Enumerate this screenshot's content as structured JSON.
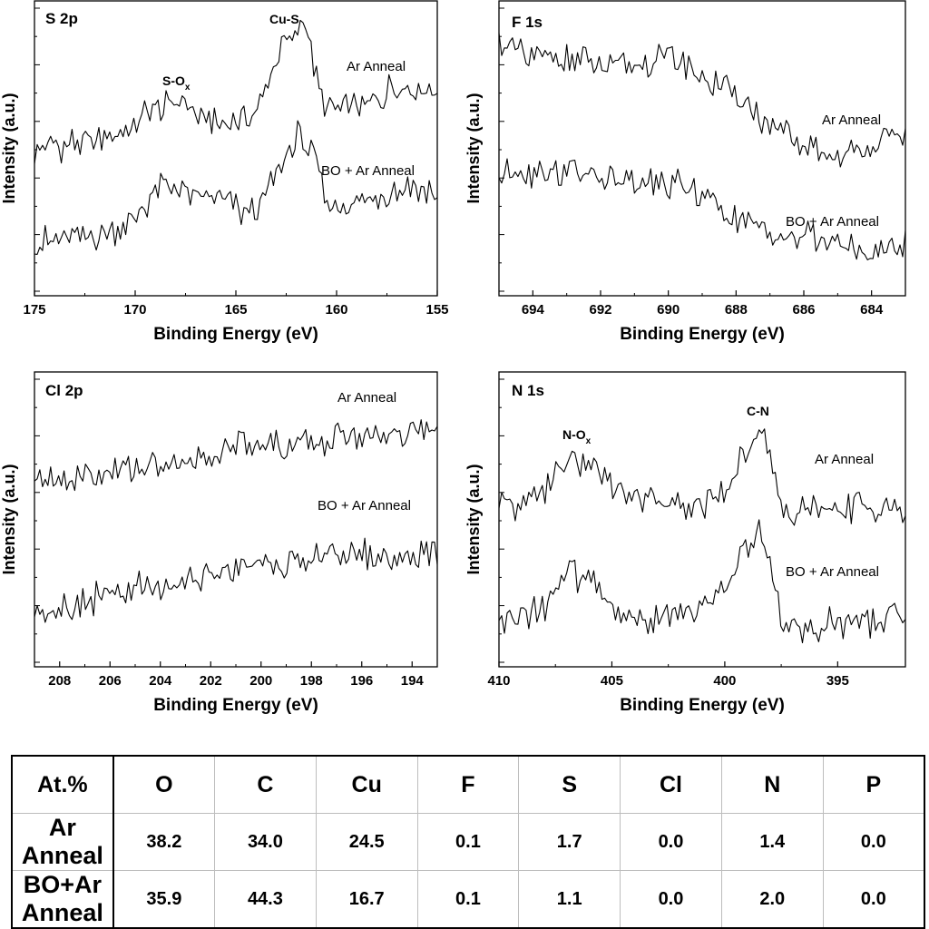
{
  "chart_data": [
    {
      "type": "line",
      "id": "s2p",
      "title": "S 2p",
      "xlabel": "Binding Energy (eV)",
      "ylabel": "Intensity (a.u.)",
      "xlim": [
        175,
        155
      ],
      "x_ticks": [
        175,
        170,
        165,
        160,
        155
      ],
      "ylim": [
        0,
        10
      ],
      "series": [
        {
          "name": "Ar Anneal",
          "x": [
            175,
            173,
            171,
            170,
            169,
            168,
            167.5,
            167,
            166,
            165,
            164,
            163.5,
            163,
            162.5,
            162,
            161.8,
            161.5,
            161,
            160.5,
            160,
            159,
            158,
            157,
            156,
            155
          ],
          "values": [
            4.9,
            5.2,
            5.5,
            5.9,
            6.5,
            6.6,
            6.9,
            6.2,
            5.9,
            5.9,
            6.2,
            7.3,
            8.3,
            8.9,
            9.2,
            9.9,
            9.6,
            7.4,
            6.6,
            6.3,
            6.6,
            6.8,
            7.4,
            7.2,
            7.1
          ]
        },
        {
          "name": "BO + Ar Anneal",
          "x": [
            175,
            173,
            171,
            170,
            169,
            168,
            167,
            166,
            165,
            164,
            163.5,
            163,
            162.5,
            162,
            161.8,
            161.5,
            161,
            160.5,
            160,
            159,
            158,
            157,
            156,
            155
          ],
          "values": [
            1.5,
            1.7,
            2.0,
            2.4,
            3.4,
            3.6,
            3.3,
            3.1,
            2.7,
            2.6,
            3.2,
            4.1,
            4.7,
            5.3,
            5.6,
            5.2,
            4.3,
            3.0,
            2.8,
            3.0,
            3.2,
            3.4,
            3.7,
            3.2
          ]
        }
      ],
      "labels": {
        "Ar Anneal": "Ar Anneal",
        "BO + Ar Anneal": "BO + Ar Anneal"
      },
      "annotations": [
        {
          "text": "Cu-S"
        },
        {
          "text": "S-O",
          "sub": "x"
        }
      ]
    },
    {
      "type": "line",
      "id": "f1s",
      "title": "F 1s",
      "xlabel": "Binding Energy (eV)",
      "ylabel": "Intensity (a.u.)",
      "xlim": [
        695,
        683
      ],
      "x_ticks": [
        694,
        692,
        690,
        688,
        686,
        684
      ],
      "ylim": [
        0,
        10
      ],
      "series": [
        {
          "name": "Ar Anneal",
          "x": [
            695,
            694,
            693,
            692,
            691,
            690,
            689,
            688,
            687,
            686,
            685,
            684,
            683
          ],
          "values": [
            8.8,
            8.2,
            8.3,
            8.0,
            8.0,
            8.5,
            7.6,
            6.9,
            5.8,
            5.0,
            4.6,
            5.2,
            5.5
          ]
        },
        {
          "name": "BO + Ar Anneal",
          "x": [
            695,
            694,
            693,
            692,
            691,
            690,
            689,
            688,
            687,
            686,
            685,
            684,
            683
          ],
          "values": [
            4.1,
            4.2,
            4.2,
            4.0,
            3.6,
            3.7,
            3.3,
            2.4,
            1.9,
            1.8,
            1.5,
            1.1,
            1.5
          ]
        }
      ],
      "labels": {
        "Ar Anneal": "Ar Anneal",
        "BO + Ar Anneal": "BO + Ar Anneal"
      },
      "annotations": []
    },
    {
      "type": "line",
      "id": "cl2p",
      "title": "Cl 2p",
      "xlabel": "Binding Energy (eV)",
      "ylabel": "Intensity (a.u.)",
      "xlim": [
        209,
        193
      ],
      "x_ticks": [
        208,
        206,
        204,
        202,
        200,
        198,
        196,
        194
      ],
      "ylim": [
        0,
        10
      ],
      "series": [
        {
          "name": "Ar Anneal",
          "x": [
            209,
            207,
            205,
            203,
            202,
            201,
            199,
            197,
            195,
            194,
            193
          ],
          "values": [
            6.3,
            6.6,
            6.9,
            7.0,
            7.4,
            7.9,
            7.7,
            8.0,
            8.1,
            8.3,
            8.1
          ]
        },
        {
          "name": "BO + Ar Anneal",
          "x": [
            209,
            207,
            205,
            203,
            202,
            201,
            199,
            197,
            195,
            194,
            193
          ],
          "values": [
            1.6,
            2.1,
            2.4,
            2.6,
            3.0,
            3.3,
            3.4,
            3.8,
            3.6,
            3.6,
            3.8
          ]
        }
      ],
      "labels": {
        "Ar Anneal": "Ar Anneal",
        "BO + Ar Anneal": "BO + Ar Anneal"
      },
      "annotations": []
    },
    {
      "type": "line",
      "id": "n1s",
      "title": "N 1s",
      "xlabel": "Binding Energy (eV)",
      "ylabel": "Intensity (a.u.)",
      "xlim": [
        410,
        392
      ],
      "x_ticks": [
        410,
        405,
        400,
        395
      ],
      "ylim": [
        0,
        10
      ],
      "series": [
        {
          "name": "Ar Anneal",
          "x": [
            410,
            409,
            408,
            407,
            406.5,
            406,
            405.5,
            405,
            404,
            403,
            402,
            401,
            400,
            399.5,
            399,
            398.6,
            398.3,
            398,
            397.5,
            397,
            396,
            395,
            394,
            393,
            392
          ],
          "values": [
            5.4,
            5.6,
            6.1,
            7.1,
            7.0,
            7.2,
            6.6,
            6.0,
            5.9,
            5.7,
            5.5,
            5.6,
            6.0,
            6.8,
            7.6,
            8.3,
            8.2,
            7.2,
            5.4,
            5.1,
            5.3,
            5.4,
            5.6,
            5.4,
            5.2
          ]
        },
        {
          "name": "BO + Ar Anneal",
          "x": [
            410,
            409,
            408,
            407,
            406.5,
            406,
            405.5,
            405,
            404,
            403,
            402,
            401,
            400,
            399.5,
            399,
            398.6,
            398.3,
            398,
            397.5,
            397,
            396,
            395,
            394,
            393,
            392
          ],
          "values": [
            1.1,
            1.5,
            1.8,
            3.0,
            2.9,
            3.0,
            2.5,
            1.6,
            1.4,
            1.3,
            1.5,
            1.8,
            2.4,
            3.2,
            4.0,
            4.7,
            4.5,
            3.5,
            1.4,
            1.0,
            1.1,
            1.3,
            1.2,
            1.4,
            1.3
          ]
        }
      ],
      "labels": {
        "Ar Anneal": "Ar Anneal",
        "BO + Ar Anneal": "BO + Ar Anneal"
      },
      "annotations": [
        {
          "text": "C-N"
        },
        {
          "text": "N-O",
          "sub": "x"
        }
      ]
    }
  ],
  "table": {
    "corner": "At.%",
    "columns": [
      "O",
      "C",
      "Cu",
      "F",
      "S",
      "Cl",
      "N",
      "P"
    ],
    "rows": [
      {
        "label": "Ar Anneal",
        "values": [
          "38.2",
          "34.0",
          "24.5",
          "0.1",
          "1.7",
          "0.0",
          "1.4",
          "0.0"
        ]
      },
      {
        "label": "BO+Ar Anneal",
        "values": [
          "35.9",
          "44.3",
          "16.7",
          "0.1",
          "1.1",
          "0.0",
          "2.0",
          "0.0"
        ]
      }
    ]
  }
}
